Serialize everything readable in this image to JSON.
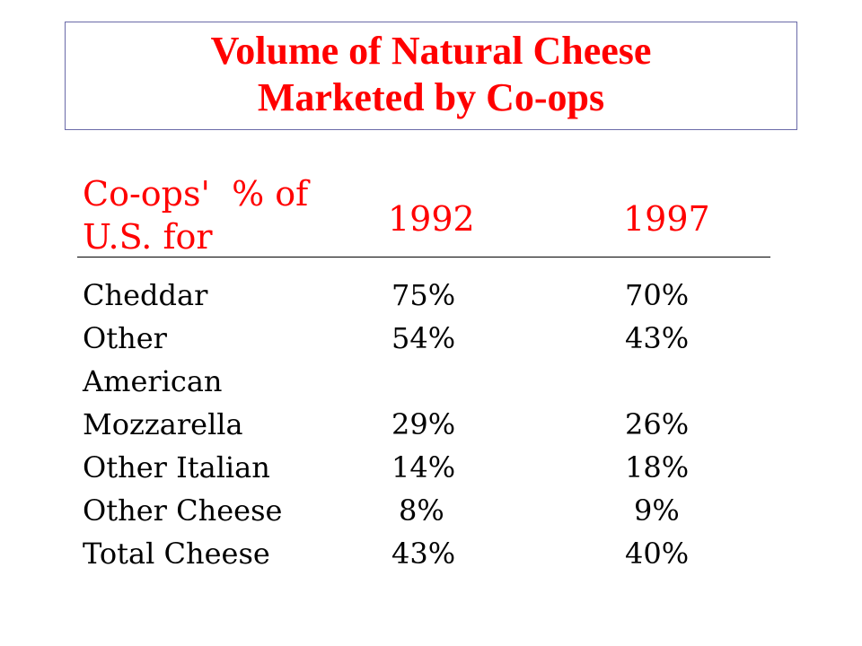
{
  "title": {
    "line1": "Volume of Natural Cheese",
    "line2": "Marketed by Co-ops"
  },
  "header": {
    "label_line1": "Co-ops'  % of",
    "label_line2": "U.S. for",
    "year1": "1992",
    "year2": "1997"
  },
  "rows": [
    {
      "name_line1": "Cheddar",
      "name_line2": "",
      "v1992": "75%",
      "v1997": "70%"
    },
    {
      "name_line1": "Other",
      "name_line2": "American",
      "v1992": "54%",
      "v1997": "43%"
    },
    {
      "name_line1": "Mozzarella",
      "name_line2": "",
      "v1992": "29%",
      "v1997": "26%"
    },
    {
      "name_line1": "Other Italian",
      "name_line2": "",
      "v1992": "14%",
      "v1997": "18%"
    },
    {
      "name_line1": "Other Cheese",
      "name_line2": "",
      "v1992": "8%",
      "v1997": "9%"
    },
    {
      "name_line1": "Total Cheese",
      "name_line2": "",
      "v1992": "43%",
      "v1997": "40%"
    }
  ],
  "colors": {
    "title": "#ff0000",
    "header": "#ff0000",
    "body_text": "#000000",
    "title_border": "#6a6aa8"
  }
}
